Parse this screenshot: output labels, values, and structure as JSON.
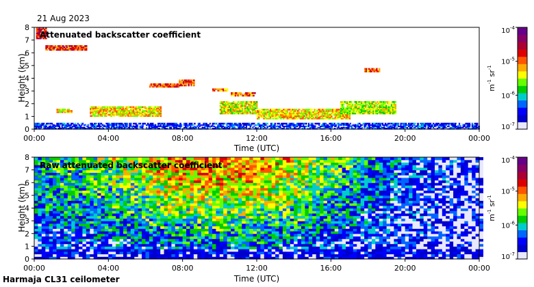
{
  "date": "21 Aug 2023",
  "footer": "Harmaja CL31 ceilometer",
  "colors": {
    "ramp": [
      "#e8e8ff",
      "#0000cc",
      "#0000ff",
      "#0066ff",
      "#00cccc",
      "#00cc00",
      "#66ff00",
      "#ffff00",
      "#ffaa00",
      "#ff5500",
      "#dd0000",
      "#aa0033",
      "#880066",
      "#660088"
    ]
  },
  "colorbar": {
    "unit_base": "m",
    "unit_exp1": "-1",
    "unit_mid": " sr",
    "unit_exp2": "-1",
    "ticks": [
      {
        "value": -4,
        "base": "10",
        "exp": "-4"
      },
      {
        "value": -5,
        "base": "10",
        "exp": "-5"
      },
      {
        "value": -6,
        "base": "10",
        "exp": "-6"
      },
      {
        "value": -7,
        "base": "10",
        "exp": "-7"
      }
    ]
  },
  "chart_data": [
    {
      "type": "heatmap",
      "title": "Attenuated backscatter coefficient",
      "xlabel": "Time (UTC)",
      "ylabel": "Height (km)",
      "xlim": [
        0,
        24
      ],
      "ylim": [
        0,
        8
      ],
      "xticks": [
        0,
        4,
        8,
        12,
        16,
        20,
        24
      ],
      "xtick_labels": [
        "00:00",
        "04:00",
        "08:00",
        "12:00",
        "16:00",
        "20:00",
        "00:00"
      ],
      "yticks": [
        0,
        1,
        2,
        3,
        4,
        5,
        6,
        7,
        8
      ],
      "ytick_labels": [
        "0",
        "1",
        "2",
        "3",
        "4",
        "5",
        "6",
        "7",
        "8"
      ],
      "color_scale": "log10 attenuated backscatter (m-1 sr-1), range 1e-7 to 1e-4",
      "layers": [
        {
          "name": "boundary layer",
          "t_start": 0,
          "t_end": 24,
          "h_min": 0,
          "h_max": 0.45,
          "log_b": -6.5
        },
        {
          "name": "high cloud",
          "t_start": 0.1,
          "t_end": 0.6,
          "h_min": 7.1,
          "h_max": 7.9,
          "log_b": -4.7
        },
        {
          "name": "high cloud",
          "t_start": 0.6,
          "t_end": 1.3,
          "h_min": 6.2,
          "h_max": 6.5,
          "log_b": -4.8
        },
        {
          "name": "high cloud",
          "t_start": 1.3,
          "t_end": 2.8,
          "h_min": 6.2,
          "h_max": 6.5,
          "log_b": -4.8
        },
        {
          "name": "mid cloud",
          "t_start": 6.2,
          "t_end": 7.8,
          "h_min": 3.3,
          "h_max": 3.6,
          "log_b": -4.9
        },
        {
          "name": "mid cloud",
          "t_start": 7.8,
          "t_end": 8.6,
          "h_min": 3.4,
          "h_max": 3.9,
          "log_b": -4.9
        },
        {
          "name": "mid cloud",
          "t_start": 9.6,
          "t_end": 10.4,
          "h_min": 3.0,
          "h_max": 3.2,
          "log_b": -5.0
        },
        {
          "name": "mid cloud",
          "t_start": 10.6,
          "t_end": 11.9,
          "h_min": 2.6,
          "h_max": 2.9,
          "log_b": -5.0
        },
        {
          "name": "mid cloud",
          "t_start": 17.8,
          "t_end": 18.6,
          "h_min": 4.5,
          "h_max": 4.7,
          "log_b": -5.0
        },
        {
          "name": "low cloud",
          "t_start": 1.2,
          "t_end": 2.0,
          "h_min": 1.3,
          "h_max": 1.6,
          "log_b": -5.3
        },
        {
          "name": "low cloud",
          "t_start": 3.0,
          "t_end": 6.8,
          "h_min": 1.0,
          "h_max": 1.8,
          "log_b": -5.3
        },
        {
          "name": "low cloud",
          "t_start": 10.0,
          "t_end": 12.0,
          "h_min": 1.2,
          "h_max": 2.2,
          "log_b": -5.4
        },
        {
          "name": "low cloud",
          "t_start": 12.0,
          "t_end": 17.0,
          "h_min": 0.8,
          "h_max": 1.6,
          "log_b": -5.3
        },
        {
          "name": "low cloud",
          "t_start": 16.5,
          "t_end": 19.5,
          "h_min": 1.2,
          "h_max": 2.2,
          "log_b": -5.5
        }
      ]
    },
    {
      "type": "heatmap",
      "title": "Raw attenuated backscatter coefficient",
      "xlabel": "Time (UTC)",
      "ylabel": "Height (km)",
      "xlim": [
        0,
        24
      ],
      "ylim": [
        0,
        8
      ],
      "xticks": [
        0,
        4,
        8,
        12,
        16,
        20,
        24
      ],
      "xtick_labels": [
        "00:00",
        "04:00",
        "08:00",
        "12:00",
        "16:00",
        "20:00",
        "00:00"
      ],
      "yticks": [
        0,
        1,
        2,
        3,
        4,
        5,
        6,
        7,
        8
      ],
      "ytick_labels": [
        "0",
        "1",
        "2",
        "3",
        "4",
        "5",
        "6",
        "7",
        "8"
      ],
      "color_scale": "log10 raw attenuated backscatter (m-1 sr-1), range 1e-7 to 1e-4",
      "noise_profile": [
        {
          "t": 0,
          "log_b_at_top": -6.0
        },
        {
          "t": 4,
          "log_b_at_top": -5.6
        },
        {
          "t": 8,
          "log_b_at_top": -5.0
        },
        {
          "t": 12,
          "log_b_at_top": -5.0
        },
        {
          "t": 16,
          "log_b_at_top": -5.7
        },
        {
          "t": 20,
          "log_b_at_top": -6.4
        },
        {
          "t": 24,
          "log_b_at_top": -6.8
        }
      ]
    }
  ]
}
